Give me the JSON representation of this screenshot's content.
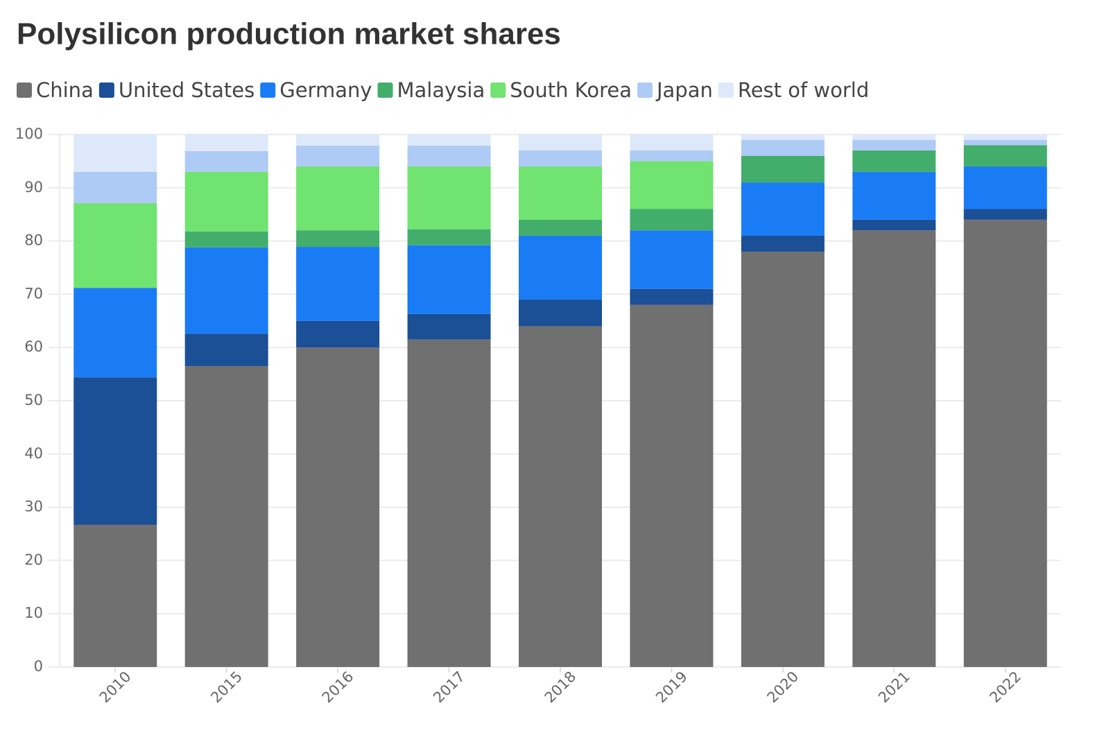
{
  "chart_data": {
    "type": "stacked-bar",
    "title": "Polysilicon production market shares",
    "categories": [
      "2010",
      "2015",
      "2016",
      "2017",
      "2018",
      "2019",
      "2020",
      "2021",
      "2022"
    ],
    "series": [
      {
        "name": "China",
        "color": "#707070",
        "values": [
          26.7,
          56.5,
          60.0,
          61.5,
          64,
          68,
          78,
          82,
          84
        ]
      },
      {
        "name": "United States",
        "color": "#1b4f96",
        "values": [
          27.7,
          6.1,
          5.0,
          4.8,
          5,
          3,
          3,
          2,
          2
        ]
      },
      {
        "name": "Germany",
        "color": "#1a7cf5",
        "values": [
          16.8,
          16.2,
          13.9,
          12.9,
          12,
          11,
          10,
          9,
          8
        ]
      },
      {
        "name": "Malaysia",
        "color": "#43ad6c",
        "values": [
          0,
          3.0,
          3.1,
          3.0,
          3,
          4,
          5,
          4,
          4
        ]
      },
      {
        "name": "South Korea",
        "color": "#70e370",
        "values": [
          15.9,
          11.2,
          12.0,
          11.8,
          10,
          9,
          0,
          0,
          0
        ]
      },
      {
        "name": "Japan",
        "color": "#adcbf5",
        "values": [
          5.9,
          3.9,
          3.9,
          3.9,
          3,
          2,
          3,
          2,
          1
        ]
      },
      {
        "name": "Rest of world",
        "color": "#dde9fb",
        "values": [
          7.0,
          3.1,
          2.1,
          2.1,
          3,
          3,
          1,
          1,
          1
        ]
      }
    ],
    "ylim": [
      0,
      100
    ],
    "yticks": [
      0,
      10,
      20,
      30,
      40,
      50,
      60,
      70,
      80,
      90,
      100
    ],
    "grid": true
  }
}
